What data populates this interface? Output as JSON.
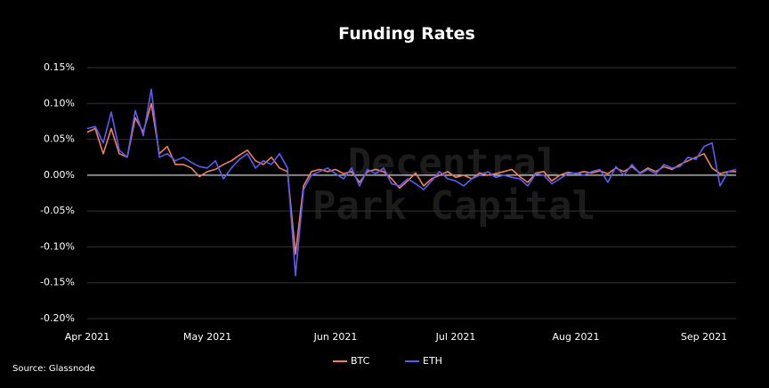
{
  "chart_data": {
    "type": "line",
    "title": "Funding Rates",
    "source": "Source: Glassnode",
    "watermark": [
      "Decentral",
      "Park Capital"
    ],
    "categories": [
      "Apr 2021",
      null,
      null,
      null,
      null,
      null,
      null,
      null,
      null,
      null,
      null,
      null,
      null,
      null,
      null,
      "May 2021",
      null,
      null,
      null,
      null,
      null,
      null,
      null,
      null,
      null,
      null,
      null,
      null,
      null,
      null,
      null,
      "Jun 2021",
      null,
      null,
      null,
      null,
      null,
      null,
      null,
      null,
      null,
      null,
      null,
      null,
      null,
      null,
      "Jul 2021",
      null,
      null,
      null,
      null,
      null,
      null,
      null,
      null,
      null,
      null,
      null,
      null,
      null,
      null,
      "Aug 2021",
      null,
      null,
      null,
      null,
      null,
      null,
      null,
      null,
      null,
      null,
      null,
      null,
      null,
      null,
      null,
      "Sep 2021",
      null,
      null,
      null,
      null
    ],
    "series": [
      {
        "name": "BTC",
        "color": "#f0805a",
        "values": [
          0.06,
          0.065,
          0.03,
          0.065,
          0.03,
          0.025,
          0.08,
          0.06,
          0.1,
          0.03,
          0.04,
          0.015,
          0.015,
          0.01,
          -0.002,
          0.005,
          0.008,
          0.015,
          0.02,
          0.028,
          0.035,
          0.02,
          0.015,
          0.025,
          0.01,
          0.005,
          -0.11,
          -0.015,
          0.005,
          0.008,
          0.005,
          0.008,
          0.002,
          0.005,
          -0.01,
          0.005,
          0.008,
          0.005,
          -0.005,
          -0.018,
          -0.008,
          0.003,
          -0.015,
          -0.005,
          0.0,
          0.005,
          -0.003,
          0.0,
          -0.005,
          0.003,
          0.0,
          0.002,
          0.005,
          0.008,
          -0.002,
          -0.01,
          0.003,
          0.005,
          -0.008,
          0.0,
          0.004,
          0.002,
          0.005,
          0.003,
          0.006,
          0.002,
          0.01,
          0.005,
          0.012,
          0.003,
          0.01,
          0.005,
          0.012,
          0.008,
          0.015,
          0.02,
          0.025,
          0.03,
          0.01,
          0.002,
          0.005,
          0.005
        ]
      },
      {
        "name": "ETH",
        "color": "#5b5cf5",
        "values": [
          0.065,
          0.068,
          0.045,
          0.088,
          0.035,
          0.025,
          0.09,
          0.055,
          0.12,
          0.025,
          0.03,
          0.02,
          0.025,
          0.018,
          0.012,
          0.01,
          0.02,
          -0.005,
          0.01,
          0.022,
          0.03,
          0.01,
          0.02,
          0.015,
          0.03,
          0.01,
          -0.14,
          -0.02,
          0.0,
          0.005,
          0.01,
          0.002,
          -0.005,
          0.01,
          -0.015,
          0.008,
          0.002,
          0.01,
          -0.012,
          -0.015,
          -0.005,
          -0.012,
          -0.02,
          -0.008,
          0.005,
          -0.005,
          -0.008,
          -0.015,
          -0.005,
          0.0,
          0.005,
          -0.003,
          0.0,
          -0.003,
          -0.005,
          -0.015,
          0.002,
          0.0,
          -0.012,
          -0.005,
          0.002,
          0.003,
          0.0,
          0.005,
          0.008,
          -0.01,
          0.012,
          0.0,
          0.015,
          0.002,
          0.008,
          0.002,
          0.015,
          0.01,
          0.012,
          0.025,
          0.022,
          0.04,
          0.045,
          -0.015,
          0.005,
          0.008
        ]
      }
    ],
    "ylim": [
      -0.2,
      0.15
    ],
    "yticks": [
      {
        "value": -0.2,
        "label": "-0.20%"
      },
      {
        "value": -0.15,
        "label": "-0.15%"
      },
      {
        "value": -0.1,
        "label": "-0.10%"
      },
      {
        "value": -0.05,
        "label": "-0.05%"
      },
      {
        "value": 0,
        "label": "0.00%"
      },
      {
        "value": 0.05,
        "label": "0.05%"
      },
      {
        "value": 0.1,
        "label": "0.10%"
      },
      {
        "value": 0.15,
        "label": "0.15%"
      }
    ],
    "grid": true,
    "legend": "bottom"
  }
}
